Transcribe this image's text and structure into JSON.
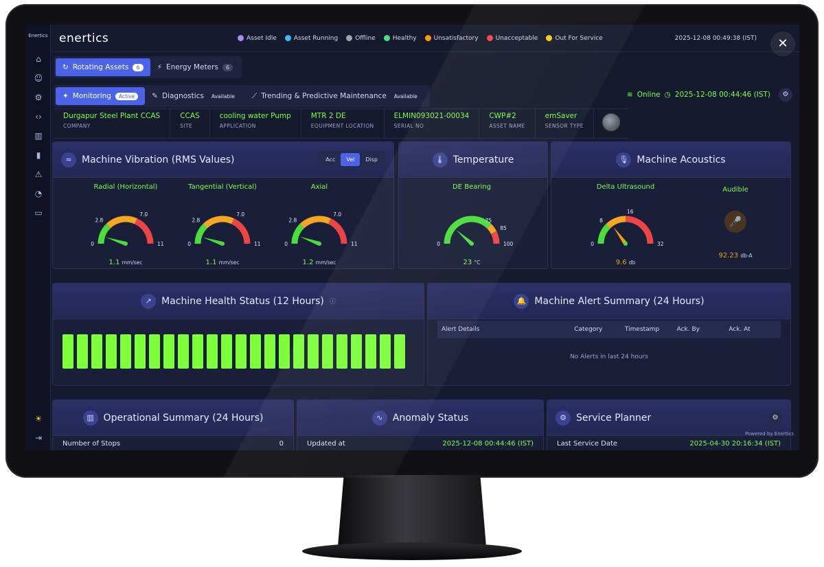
{
  "app": {
    "brand": "enertics",
    "sidebar_logo": "Enertics",
    "top_time": "2025-12-08 00:49:38 (IST)"
  },
  "legend": [
    {
      "label": "Asset Idle",
      "color": "#a78bfa"
    },
    {
      "label": "Asset Running",
      "color": "#38bdf8"
    },
    {
      "label": "Offline",
      "color": "#9ca3af"
    },
    {
      "label": "Healthy",
      "color": "#4ade80"
    },
    {
      "label": "Unsatisfactory",
      "color": "#f59e0b"
    },
    {
      "label": "Unacceptable",
      "color": "#ef4444"
    },
    {
      "label": "Out For Service",
      "color": "#facc15"
    }
  ],
  "tabs_primary": [
    {
      "label": "Rotating Assets",
      "count": "6"
    },
    {
      "label": "Energy Meters",
      "count": "6"
    }
  ],
  "tabs_secondary": [
    {
      "label": "Monitoring",
      "tag": "Active"
    },
    {
      "label": "Diagnostics",
      "tag": "Available"
    },
    {
      "label": "Trending & Predictive Maintenance",
      "tag": "Available"
    }
  ],
  "status": {
    "label": "Online",
    "time": "2025-12-08 00:44:46 (IST)"
  },
  "asset_info": [
    {
      "value": "Durgapur Steel Plant CCAS",
      "label": "COMPANY"
    },
    {
      "value": "CCAS",
      "label": "SITE"
    },
    {
      "value": "cooling water Pump",
      "label": "APPLICATION"
    },
    {
      "value": "MTR 2 DE",
      "label": "EQUIPMENT LOCATION"
    },
    {
      "value": "ELMIN093021-00034",
      "label": "SERIAL NO"
    },
    {
      "value": "CWP#2",
      "label": "ASSET NAME"
    },
    {
      "value": "emSaver",
      "label": "SENSOR TYPE"
    }
  ],
  "vibration": {
    "title": "Machine Vibration (RMS Values)",
    "modes": [
      "Acc",
      "Vel",
      "Disp"
    ],
    "active_mode": "Vel",
    "gauges": [
      {
        "title": "Radial (Horizontal)",
        "value": "1.1",
        "unit": "mm/sec",
        "min": "0",
        "t1": "2.8",
        "t2": "7.0",
        "max": "11",
        "num": 1.1,
        "range": 11
      },
      {
        "title": "Tangential (Vertical)",
        "value": "1.1",
        "unit": "mm/sec",
        "min": "0",
        "t1": "2.8",
        "t2": "7.0",
        "max": "11",
        "num": 1.1,
        "range": 11
      },
      {
        "title": "Axial",
        "value": "1.2",
        "unit": "mm/sec",
        "min": "0",
        "t1": "2.8",
        "t2": "7.0",
        "max": "11",
        "num": 1.2,
        "range": 11
      }
    ]
  },
  "temperature": {
    "title": "Temperature",
    "gauge": {
      "title": "DE Bearing",
      "value": "23",
      "unit": "°C",
      "min": "0",
      "t1": "75",
      "t2": "85",
      "max": "100",
      "num": 23,
      "range": 100
    }
  },
  "acoustics": {
    "title": "Machine Acoustics",
    "gauge": {
      "title": "Delta Ultrasound",
      "value": "9.6",
      "unit": "db",
      "min": "0",
      "t1": "8",
      "t2": "16",
      "max": "32",
      "num": 9.6,
      "range": 32
    },
    "audible": {
      "title": "Audible",
      "value": "92.23",
      "unit": "db-A"
    }
  },
  "health": {
    "title": "Machine Health Status (12 Hours)",
    "bars": 24
  },
  "alerts": {
    "title": "Machine Alert Summary (24 Hours)",
    "columns": [
      "Alert Details",
      "Category",
      "Timestamp",
      "Ack. By",
      "Ack. At"
    ],
    "empty": "No Alerts in last 24 hours"
  },
  "operational": {
    "title": "Operational Summary (24 Hours)",
    "row_label": "Number of Stops",
    "row_value": "0"
  },
  "anomaly": {
    "title": "Anomaly Status",
    "row_label": "Updated at",
    "row_value": "2025-12-08 00:44:46 (IST)"
  },
  "service": {
    "title": "Service Planner",
    "row_label": "Last Service Date",
    "row_value": "2025-04-30 20:16:34 (IST)",
    "powered": "Powered by Enertics"
  }
}
